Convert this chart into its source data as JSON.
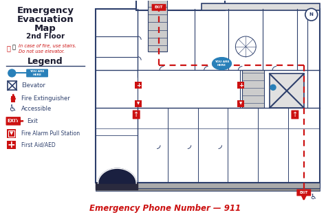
{
  "title_line1": "Emergency",
  "title_line2": "Evacuation",
  "title_line3": "Map",
  "title_line4": "2nd Floor",
  "fire_warning": "In case of fire, use stairs.\nDo not use elevator.",
  "legend_title": "Legend",
  "emergency_text": "Emergency Phone Number — 911",
  "bg_color": "#ffffff",
  "wall_color": "#2c3e6b",
  "floor_color": "#f5f5f5",
  "stair_color": "#cccccc",
  "exit_route_color": "#cc1111",
  "you_are_here_color": "#2980b9",
  "title_color": "#1a1a2e",
  "emergency_number_color": "#cc1111",
  "red_icon_color": "#cc1111",
  "gray_base_color": "#999999"
}
